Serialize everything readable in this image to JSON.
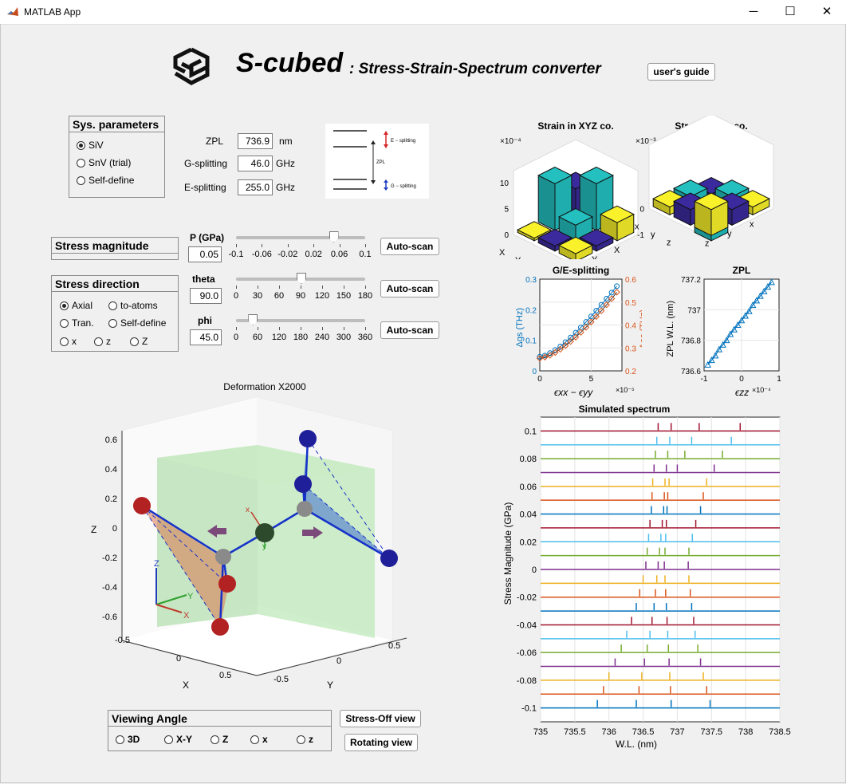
{
  "window": {
    "title": "MATLAB App",
    "minimize": "─",
    "maximize": "☐",
    "close": "✕"
  },
  "header": {
    "title": "S-cubed",
    "subtitle": ": Stress-Strain-Spectrum converter",
    "guide_button": "user's guide"
  },
  "sys_params": {
    "title": "Sys. parameters",
    "options": [
      "SiV",
      "SnV (trial)",
      "Self-define"
    ],
    "selected": "SiV",
    "zpl_label": "ZPL",
    "zpl_value": "736.9",
    "zpl_unit": "nm",
    "g_label": "G-splitting",
    "g_value": "46.0",
    "g_unit": "GHz",
    "e_label": "E-splitting",
    "e_value": "255.0",
    "e_unit": "GHz"
  },
  "level_diagram": {
    "e_label": "E − splitting",
    "zpl_label": "ZPL",
    "g_label": "G − splitting"
  },
  "stress_magnitude": {
    "title": "Stress magnitude",
    "p_label": "P (GPa)",
    "p_value": "0.05",
    "slider_value": 0.05,
    "slider_min": -0.1,
    "slider_max": 0.1,
    "ticks": [
      "-0.1",
      "-0.06",
      "-0.02",
      "0.02",
      "0.06",
      "0.1"
    ],
    "button": "Auto-scan"
  },
  "stress_direction": {
    "title": "Stress direction",
    "options": [
      "Axial",
      "to-atoms",
      "Tran.",
      "Self-define",
      "x",
      "z",
      "Z"
    ],
    "selected": "Axial",
    "theta_label": "theta",
    "theta_value": "90.0",
    "theta_slider": 90,
    "theta_max": 180,
    "theta_ticks": [
      "0",
      "30",
      "60",
      "90",
      "120",
      "150",
      "180"
    ],
    "phi_label": "phi",
    "phi_value": "45.0",
    "phi_slider": 45,
    "phi_max": 360,
    "phi_ticks": [
      "0",
      "60",
      "120",
      "180",
      "240",
      "300",
      "360"
    ],
    "theta_button": "Auto-scan",
    "phi_button": "Auto-scan"
  },
  "deformation": {
    "title": "Deformation X2000",
    "z_ticks": [
      "0.6",
      "0.4",
      "0.2",
      "0",
      "-0.2",
      "-0.4",
      "-0.6"
    ],
    "x_ticks": [
      "-0.5",
      "0",
      "0.5"
    ],
    "y_ticks": [
      "0.5",
      "0",
      "-0.5"
    ],
    "xlabel": "X",
    "ylabel": "Y",
    "zlabel": "Z",
    "triad": {
      "x": "X",
      "y": "Y",
      "z": "Z"
    },
    "local_axes": {
      "x": "x",
      "y": "y"
    }
  },
  "viewing": {
    "title": "Viewing Angle",
    "options": [
      "3D",
      "X-Y",
      "Z",
      "x",
      "z"
    ],
    "stress_off_button": "Stress-Off view",
    "rotating_button": "Rotating view"
  },
  "colors": {
    "accent_blue": "#0072bd",
    "accent_orange": "#d95319",
    "bar_purple": "#3b2a9e",
    "bar_teal": "#24c0c0",
    "bar_yellow": "#f9f22a"
  },
  "chart_data": [
    {
      "type": "bar3d",
      "title": "Strain in XYZ co.",
      "exponent": "×10⁻⁴",
      "zlim": [
        0,
        10
      ],
      "z_ticks": [
        "10",
        "5",
        "0"
      ],
      "x_labels": [
        "X",
        "Y",
        "Z"
      ],
      "y_labels": [
        "Z",
        "Y",
        "X"
      ],
      "values": [
        [
          6.0,
          9.0,
          3.5
        ],
        [
          9.0,
          3.0,
          1.0
        ],
        [
          0.5,
          1.0,
          1.5
        ]
      ]
    },
    {
      "type": "bar3d",
      "title": "Strain in xyz co.",
      "exponent": "×10⁻³",
      "zlim": [
        -1,
        1
      ],
      "z_ticks": [
        "0",
        "-1"
      ],
      "x_labels": [
        "x",
        "y",
        "z"
      ],
      "y_labels": [
        "z",
        "y",
        "x"
      ],
      "values": [
        [
          -0.6,
          0.3,
          0.3
        ],
        [
          0.3,
          -1.0,
          0.6
        ],
        [
          0.3,
          0.6,
          1.0
        ]
      ]
    },
    {
      "type": "line",
      "title": "G/E-splitting",
      "xlabel": "ϵxx − ϵyy",
      "x_exponent": "×10⁻⁵",
      "ylabel_left": "Δgs (THz)",
      "ylabel_right": "Δes (THz)",
      "xlim": [
        0,
        8
      ],
      "ylim_left": [
        0,
        0.3
      ],
      "ylim_right": [
        0.2,
        0.6
      ],
      "x_ticks": [
        "0",
        "5"
      ],
      "left_ticks": [
        "0.3",
        "0.2",
        "0.1",
        "0"
      ],
      "right_ticks": [
        "0.6",
        "0.5",
        "0.4",
        "0.3",
        "0.2"
      ],
      "series": [
        {
          "axis": "left",
          "x": [
            0,
            0.5,
            1,
            1.5,
            2,
            2.5,
            3,
            3.5,
            4,
            4.5,
            5,
            5.5,
            6,
            6.5,
            7,
            7.5
          ],
          "y": [
            0.046,
            0.05,
            0.058,
            0.068,
            0.08,
            0.094,
            0.109,
            0.125,
            0.142,
            0.16,
            0.178,
            0.197,
            0.216,
            0.236,
            0.256,
            0.277
          ]
        },
        {
          "axis": "right",
          "x": [
            0,
            0.5,
            1,
            1.5,
            2,
            2.5,
            3,
            3.5,
            4,
            4.5,
            5,
            5.5,
            6,
            6.5,
            7,
            7.5
          ],
          "y": [
            0.255,
            0.26,
            0.268,
            0.28,
            0.294,
            0.31,
            0.328,
            0.347,
            0.368,
            0.39,
            0.413,
            0.437,
            0.462,
            0.488,
            0.515,
            0.543
          ]
        }
      ]
    },
    {
      "type": "line",
      "title": "ZPL",
      "xlabel": "ϵzz",
      "x_exponent": "×10⁻⁴",
      "ylabel": "ZPL W.L. (nm)",
      "xlim": [
        -1,
        1
      ],
      "ylim": [
        736.6,
        737.2
      ],
      "x_ticks": [
        "-1",
        "0",
        "1"
      ],
      "y_ticks": [
        "737.2",
        "737",
        "736.8",
        "736.6"
      ],
      "series": [
        {
          "x": [
            -0.9,
            -0.8,
            -0.7,
            -0.6,
            -0.5,
            -0.4,
            -0.3,
            -0.2,
            -0.1,
            0,
            0.1,
            0.2,
            0.3,
            0.4,
            0.5,
            0.6,
            0.7,
            0.8
          ],
          "y": [
            736.64,
            736.67,
            736.7,
            736.74,
            736.77,
            736.8,
            736.84,
            736.87,
            736.9,
            736.93,
            736.96,
            736.99,
            737.03,
            737.06,
            737.09,
            737.12,
            737.15,
            737.18
          ]
        }
      ]
    },
    {
      "type": "spectrum",
      "title": "Simulated spectrum",
      "xlabel": "W.L. (nm)",
      "ylabel": "Stress Magnitude (GPa)",
      "xlim": [
        735,
        738.5
      ],
      "ylim": [
        -0.11,
        0.11
      ],
      "x_ticks": [
        "735",
        "735.5",
        "736",
        "736.5",
        "737",
        "737.5",
        "738",
        "738.5"
      ],
      "y_ticks": [
        "0.1",
        "0.08",
        "0.06",
        "0.04",
        "0.02",
        "0",
        "-0.02",
        "-0.04",
        "-0.06",
        "-0.08",
        "-0.1"
      ],
      "stress": [
        -0.1,
        -0.09,
        -0.08,
        -0.07,
        -0.06,
        -0.05,
        -0.04,
        -0.03,
        -0.02,
        -0.01,
        0,
        0.01,
        0.02,
        0.03,
        0.04,
        0.05,
        0.06,
        0.07,
        0.08,
        0.09,
        0.1
      ],
      "lines": [
        [
          735.83,
          736.4,
          736.91,
          737.48
        ],
        [
          735.92,
          736.44,
          736.9,
          737.43
        ],
        [
          736.0,
          736.48,
          736.89,
          737.38
        ],
        [
          736.09,
          736.52,
          736.88,
          737.34
        ],
        [
          736.18,
          736.56,
          736.87,
          737.3
        ],
        [
          736.26,
          736.6,
          736.86,
          737.26
        ],
        [
          736.33,
          736.63,
          736.85,
          737.24
        ],
        [
          736.4,
          736.66,
          736.84,
          737.21
        ],
        [
          736.45,
          736.68,
          736.83,
          737.19
        ],
        [
          736.5,
          736.7,
          736.82,
          737.17
        ],
        [
          736.54,
          736.72,
          736.81,
          737.16
        ],
        [
          736.56,
          736.74,
          736.82,
          737.17
        ],
        [
          736.58,
          736.76,
          736.83,
          737.22
        ],
        [
          736.6,
          736.78,
          736.84,
          737.27
        ],
        [
          736.62,
          736.8,
          736.85,
          737.34
        ],
        [
          736.63,
          736.81,
          736.86,
          737.38
        ],
        [
          736.64,
          736.82,
          736.88,
          737.43
        ],
        [
          736.66,
          736.84,
          737.0,
          737.54
        ],
        [
          736.68,
          736.86,
          737.11,
          737.66
        ],
        [
          736.7,
          736.89,
          737.21,
          737.79
        ],
        [
          736.72,
          736.91,
          737.32,
          737.92
        ]
      ]
    }
  ]
}
